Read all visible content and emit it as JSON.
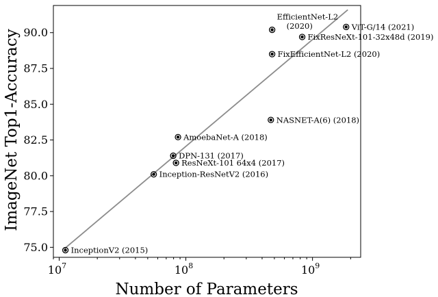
{
  "chart_data": {
    "type": "scatter",
    "title": "",
    "xlabel": "Number of Parameters",
    "ylabel": "ImageNet Top1-Accuracy",
    "x_scale": "log",
    "xlim": [
      9000000,
      2400000000
    ],
    "ylim": [
      74.3,
      91.9
    ],
    "x_ticks": [
      {
        "value": 10000000,
        "base": "10",
        "exp": "7"
      },
      {
        "value": 100000000,
        "base": "10",
        "exp": "8"
      },
      {
        "value": 1000000000,
        "base": "10",
        "exp": "9"
      }
    ],
    "y_ticks": [
      {
        "value": 75.0,
        "label": "75.0"
      },
      {
        "value": 77.5,
        "label": "77.5"
      },
      {
        "value": 80.0,
        "label": "80.0"
      },
      {
        "value": 82.5,
        "label": "82.5"
      },
      {
        "value": 85.0,
        "label": "85.0"
      },
      {
        "value": 87.5,
        "label": "87.5"
      },
      {
        "value": 90.0,
        "label": "90.0"
      }
    ],
    "grid": false,
    "legend": "none",
    "points": [
      {
        "label": "InceptionV2 (2015)",
        "x": 11200000,
        "y": 74.8
      },
      {
        "label": "Inception-ResNetV2 (2016)",
        "x": 55800000,
        "y": 80.1
      },
      {
        "label": "DPN-131 (2017)",
        "x": 79500000,
        "y": 81.4
      },
      {
        "label": "ResNeXt-101 64x4 (2017)",
        "x": 83600000,
        "y": 80.9
      },
      {
        "label": "AmoebaNet-A (2018)",
        "x": 86700000,
        "y": 82.7
      },
      {
        "label": "NASNET-A(6) (2018)",
        "x": 469000000,
        "y": 83.9
      },
      {
        "label": "FixEfficientNet-L2 (2020)",
        "x": 480000000,
        "y": 88.5
      },
      {
        "label": [
          "EfficientNet-L2",
          "(2020)"
        ],
        "x": 480000000,
        "y": 90.2
      },
      {
        "label": "FixResNeXt-101-32x48d (2019)",
        "x": 829000000,
        "y": 89.7
      },
      {
        "label": "ViT-G/14 (2021)",
        "x": 1843000000,
        "y": 90.4
      }
    ],
    "trend_line": {
      "x": [
        11000000,
        1900000000
      ],
      "y": [
        74.9,
        91.6
      ]
    },
    "colors": {
      "points": "#000000",
      "trend_line": "#8c8c8c",
      "axes": "#000000"
    }
  }
}
